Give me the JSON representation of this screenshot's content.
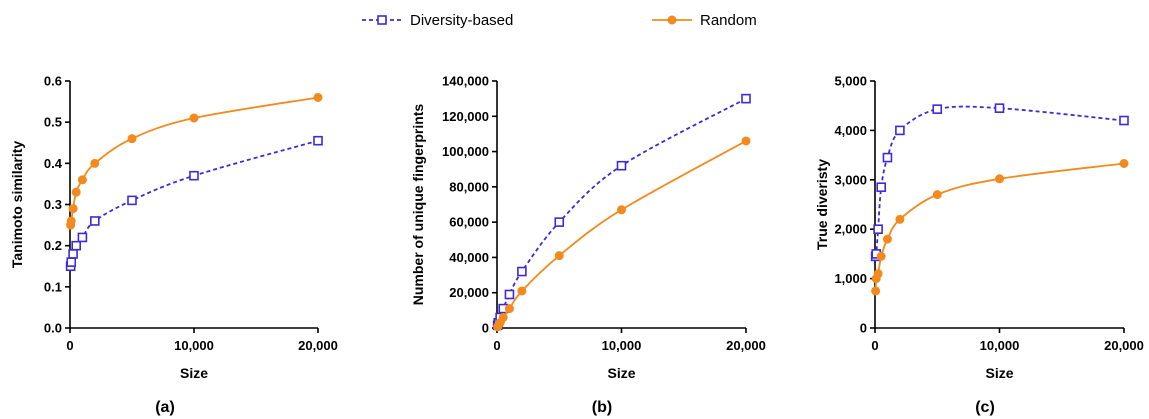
{
  "legend": {
    "series": [
      {
        "name": "Diversity-based",
        "color": "#3b2bd8",
        "marker": "square-open",
        "dash": "dashed"
      },
      {
        "name": "Random",
        "color": "#f28a1e",
        "marker": "circle-filled",
        "dash": "solid"
      }
    ],
    "placement": "top-center"
  },
  "chart_data": [
    {
      "type": "line",
      "panel_label": "(a)",
      "xlabel": "Size",
      "ylabel": "Tanimoto similarity",
      "xlim": [
        0,
        20000
      ],
      "ylim": [
        0,
        0.6
      ],
      "xticks": [
        0,
        10000,
        20000
      ],
      "xtick_labels": [
        "0",
        "10,000",
        "20,000"
      ],
      "yticks": [
        0,
        0.1,
        0.2,
        0.3,
        0.4,
        0.5,
        0.6
      ],
      "ytick_labels": [
        "0.0",
        "0.1",
        "0.2",
        "0.3",
        "0.4",
        "0.5",
        "0.6"
      ],
      "series": [
        {
          "name": "Diversity-based",
          "x": [
            50,
            100,
            250,
            500,
            1000,
            2000,
            5000,
            10000,
            20000
          ],
          "y": [
            0.15,
            0.16,
            0.18,
            0.2,
            0.22,
            0.26,
            0.31,
            0.37,
            0.455
          ]
        },
        {
          "name": "Random",
          "x": [
            50,
            100,
            250,
            500,
            1000,
            2000,
            5000,
            10000,
            20000
          ],
          "y": [
            0.25,
            0.26,
            0.29,
            0.33,
            0.36,
            0.4,
            0.46,
            0.51,
            0.56
          ]
        }
      ]
    },
    {
      "type": "line",
      "panel_label": "(b)",
      "xlabel": "Size",
      "ylabel": "Number of unique fingerprints",
      "xlim": [
        0,
        20000
      ],
      "ylim": [
        0,
        140000
      ],
      "xticks": [
        0,
        10000,
        20000
      ],
      "xtick_labels": [
        "0",
        "10,000",
        "20,000"
      ],
      "yticks": [
        0,
        20000,
        40000,
        60000,
        80000,
        100000,
        120000,
        140000
      ],
      "ytick_labels": [
        "0",
        "20,000",
        "40,000",
        "60,000",
        "80,000",
        "100,000",
        "120,000",
        "140,000"
      ],
      "series": [
        {
          "name": "Diversity-based",
          "x": [
            50,
            100,
            250,
            500,
            1000,
            2000,
            5000,
            10000,
            20000
          ],
          "y": [
            1500,
            3000,
            6000,
            11000,
            19000,
            32000,
            60000,
            92000,
            130000
          ]
        },
        {
          "name": "Random",
          "x": [
            50,
            100,
            250,
            500,
            1000,
            2000,
            5000,
            10000,
            20000
          ],
          "y": [
            700,
            1200,
            3000,
            6000,
            11000,
            21000,
            41000,
            67000,
            106000
          ]
        }
      ]
    },
    {
      "type": "line",
      "panel_label": "(c)",
      "xlabel": "Size",
      "ylabel": "True diveristy",
      "xlim": [
        0,
        20000
      ],
      "ylim": [
        0,
        5000
      ],
      "xticks": [
        0,
        10000,
        20000
      ],
      "xtick_labels": [
        "0",
        "10,000",
        "20,000"
      ],
      "yticks": [
        0,
        1000,
        2000,
        3000,
        4000,
        5000
      ],
      "ytick_labels": [
        "0",
        "1,000",
        "2,000",
        "3,000",
        "4,000",
        "5,000"
      ],
      "series": [
        {
          "name": "Diversity-based",
          "x": [
            50,
            100,
            250,
            500,
            1000,
            2000,
            5000,
            10000,
            20000
          ],
          "y": [
            1450,
            1500,
            2000,
            2850,
            3450,
            4000,
            4430,
            4450,
            4200
          ]
        },
        {
          "name": "Random",
          "x": [
            50,
            100,
            250,
            500,
            1000,
            2000,
            5000,
            10000,
            20000
          ],
          "y": [
            750,
            1000,
            1100,
            1450,
            1800,
            2200,
            2700,
            3020,
            3330
          ]
        }
      ]
    }
  ]
}
